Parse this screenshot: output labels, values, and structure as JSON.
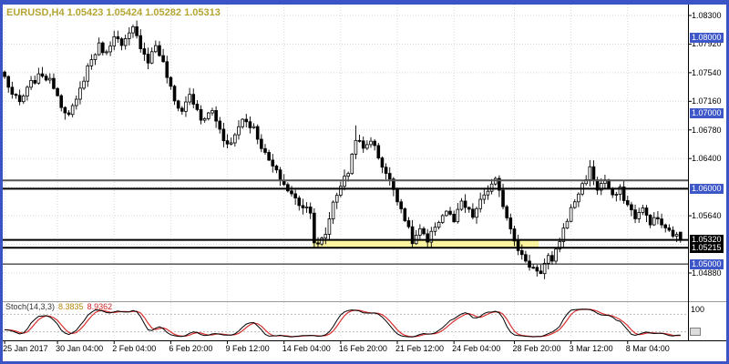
{
  "header": {
    "symbol_info": "EURUSD,H4 1.05423 1.05424 1.05282 1.05313"
  },
  "colors": {
    "background": "#FFFFFF",
    "frame": "#3A53C5",
    "grid": "#D8D8D8",
    "bull": "#FFFFFF",
    "bear": "#000000",
    "wick": "#000000",
    "band": "#FAF3A0",
    "level_black": "#000000",
    "level_gray": "#555555",
    "label_blue_bg": "#3D57C9",
    "stoch_main": "#000000",
    "stoch_signal": "#D93030",
    "symbol_text": "#B3A633"
  },
  "price_axis": {
    "ticks": [
      {
        "text": "1.08300",
        "price": 1.083
      },
      {
        "text": "1.07920",
        "price": 1.0792
      },
      {
        "text": "1.07540",
        "price": 1.0754
      },
      {
        "text": "1.07160",
        "price": 1.0716
      },
      {
        "text": "1.06780",
        "price": 1.0678
      },
      {
        "text": "1.06400",
        "price": 1.064
      },
      {
        "text": "1.05640",
        "price": 1.0564
      },
      {
        "text": "1.04880",
        "price": 1.0488
      }
    ],
    "line_labels": [
      {
        "text": "1.08000",
        "price": 1.08,
        "bg": "#3D57C9",
        "fg": "#FFFFFF"
      },
      {
        "text": "1.07000",
        "price": 1.07,
        "bg": "#3D57C9",
        "fg": "#FFFFFF"
      },
      {
        "text": "1.06000",
        "price": 1.06,
        "bg": "#3D57C9",
        "fg": "#FFFFFF"
      },
      {
        "text": "1.05320",
        "price": 1.0532,
        "bg": "#000000",
        "fg": "#FFFFFF"
      },
      {
        "text": "1.05215",
        "price": 1.05215,
        "bg": "#000000",
        "fg": "#FFFFFF"
      },
      {
        "text": "1.05000",
        "price": 1.05,
        "bg": "#3D57C9",
        "fg": "#FFFFFF"
      }
    ]
  },
  "time_axis": {
    "labels": [
      {
        "text": "25 Jan 2017",
        "idx": 0
      },
      {
        "text": "30 Jan 04:00",
        "idx": 14
      },
      {
        "text": "2 Feb 04:00",
        "idx": 29
      },
      {
        "text": "6 Feb 20:00",
        "idx": 44
      },
      {
        "text": "9 Feb 12:00",
        "idx": 59
      },
      {
        "text": "14 Feb 04:00",
        "idx": 74
      },
      {
        "text": "16 Feb 20:00",
        "idx": 89
      },
      {
        "text": "21 Feb 12:00",
        "idx": 104
      },
      {
        "text": "24 Feb 04:00",
        "idx": 119
      },
      {
        "text": "28 Feb 20:00",
        "idx": 135
      },
      {
        "text": "3 Mar 12:00",
        "idx": 150
      },
      {
        "text": "8 Mar 04:00",
        "idx": 165
      }
    ]
  },
  "indicator": {
    "name": "Stoch(14,3,3)",
    "value_main": "8.3835",
    "value_signal": "8.9362",
    "scale_top": "100",
    "levels": [
      20,
      80
    ]
  },
  "chart_data": {
    "type": "candlestick",
    "title": "EURUSD,H4",
    "last_bar_ohlc": {
      "open": 1.05423,
      "high": 1.05424,
      "low": 1.05282,
      "close": 1.05313
    },
    "y_axis": {
      "top": 1.083,
      "bottom": 1.0488,
      "tick_step": 0.0038
    },
    "x_range": "25 Jan 2017 to 8 Mar 2017, H4 bars",
    "num_candles": 180,
    "close_path_anchors": [
      [
        0,
        1.0748
      ],
      [
        2,
        1.0725
      ],
      [
        4,
        1.0714
      ],
      [
        7,
        1.074
      ],
      [
        10,
        1.0752
      ],
      [
        13,
        1.0737
      ],
      [
        15,
        1.0712
      ],
      [
        17,
        1.0697
      ],
      [
        19,
        1.0716
      ],
      [
        22,
        1.0762
      ],
      [
        25,
        1.079
      ],
      [
        27,
        1.0779
      ],
      [
        29,
        1.0806
      ],
      [
        31,
        1.0788
      ],
      [
        34,
        1.0812
      ],
      [
        36,
        1.079
      ],
      [
        38,
        1.077
      ],
      [
        40,
        1.0791
      ],
      [
        42,
        1.0766
      ],
      [
        45,
        1.0716
      ],
      [
        47,
        1.0703
      ],
      [
        49,
        1.0726
      ],
      [
        52,
        1.069
      ],
      [
        55,
        1.0703
      ],
      [
        58,
        1.0666
      ],
      [
        60,
        1.066
      ],
      [
        63,
        1.0694
      ],
      [
        66,
        1.068
      ],
      [
        69,
        1.0645
      ],
      [
        72,
        1.0621
      ],
      [
        75,
        1.0598
      ],
      [
        78,
        1.058
      ],
      [
        81,
        1.0572
      ],
      [
        82,
        1.053
      ],
      [
        83,
        1.0524
      ],
      [
        85,
        1.054
      ],
      [
        87,
        1.0582
      ],
      [
        89,
        1.0605
      ],
      [
        91,
        1.0622
      ],
      [
        93,
        1.0668
      ],
      [
        95,
        1.0652
      ],
      [
        97,
        1.0666
      ],
      [
        100,
        1.0631
      ],
      [
        103,
        1.06
      ],
      [
        106,
        1.0561
      ],
      [
        108,
        1.0529
      ],
      [
        110,
        1.0546
      ],
      [
        112,
        1.0527
      ],
      [
        114,
        1.0551
      ],
      [
        117,
        1.0571
      ],
      [
        119,
        1.0556
      ],
      [
        121,
        1.0581
      ],
      [
        124,
        1.0563
      ],
      [
        127,
        1.0592
      ],
      [
        130,
        1.061
      ],
      [
        132,
        1.0579
      ],
      [
        134,
        1.0548
      ],
      [
        136,
        1.0521
      ],
      [
        138,
        1.0501
      ],
      [
        140,
        1.0495
      ],
      [
        142,
        1.049
      ],
      [
        144,
        1.051
      ],
      [
        145,
        1.05
      ],
      [
        147,
        1.0532
      ],
      [
        149,
        1.056
      ],
      [
        151,
        1.0584
      ],
      [
        153,
        1.0605
      ],
      [
        155,
        1.0626
      ],
      [
        157,
        1.06
      ],
      [
        159,
        1.0612
      ],
      [
        161,
        1.0588
      ],
      [
        163,
        1.0598
      ],
      [
        165,
        1.0578
      ],
      [
        167,
        1.0563
      ],
      [
        169,
        1.0572
      ],
      [
        171,
        1.0556
      ],
      [
        173,
        1.056
      ],
      [
        175,
        1.0545
      ],
      [
        177,
        1.054
      ],
      [
        179,
        1.05313
      ]
    ],
    "bar_overrides": [
      {
        "i": 34,
        "h": 1.0818
      },
      {
        "i": 83,
        "l": 1.0522
      },
      {
        "i": 84,
        "l": 1.0524
      },
      {
        "i": 93,
        "h": 1.0684
      },
      {
        "i": 108,
        "l": 1.0521
      },
      {
        "i": 112,
        "l": 1.0522
      },
      {
        "i": 130,
        "h": 1.0616
      },
      {
        "i": 142,
        "l": 1.0488
      },
      {
        "i": 155,
        "h": 1.0638
      },
      {
        "i": 179,
        "o": 1.05423,
        "h": 1.05424,
        "l": 1.05282,
        "c": 1.05313
      }
    ],
    "levels": {
      "resistance_zone": [
        1.06,
        1.0611
      ],
      "support_lines": [
        1.0532,
        1.05215
      ],
      "round_line": 1.05,
      "highlight_band": {
        "from_bar": 82,
        "to_bar": 141,
        "top": 1.0532,
        "bottom": 1.05215,
        "color": "#FAF3A0"
      }
    },
    "indicator": {
      "type": "stochastic",
      "k": 14,
      "d": 3,
      "slowing": 3,
      "range": [
        0,
        100
      ],
      "levels": [
        20,
        80
      ],
      "last_main": 8.3835,
      "last_signal": 8.9362
    }
  }
}
